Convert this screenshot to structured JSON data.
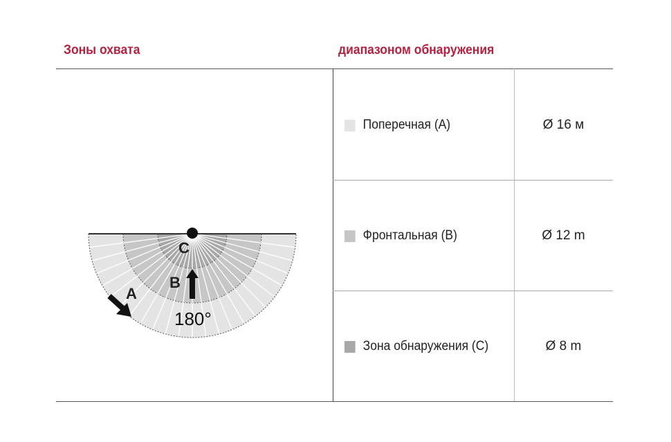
{
  "headers": {
    "left": "Зоны охвата",
    "right": "диапазоном обнаружения"
  },
  "diagram": {
    "label_a": "A",
    "label_b": "B",
    "label_c": "C",
    "angle": "180°"
  },
  "rows": [
    {
      "label": "Поперечная (A)",
      "value": "Ø 16 м",
      "color": "#e4e4e4"
    },
    {
      "label": "Фронтальная (B)",
      "value": "Ø 12 m",
      "color": "#c6c6c6"
    },
    {
      "label": "Зона обнаружения (C)",
      "value": "Ø 8 m",
      "color": "#a8a8a8"
    }
  ]
}
